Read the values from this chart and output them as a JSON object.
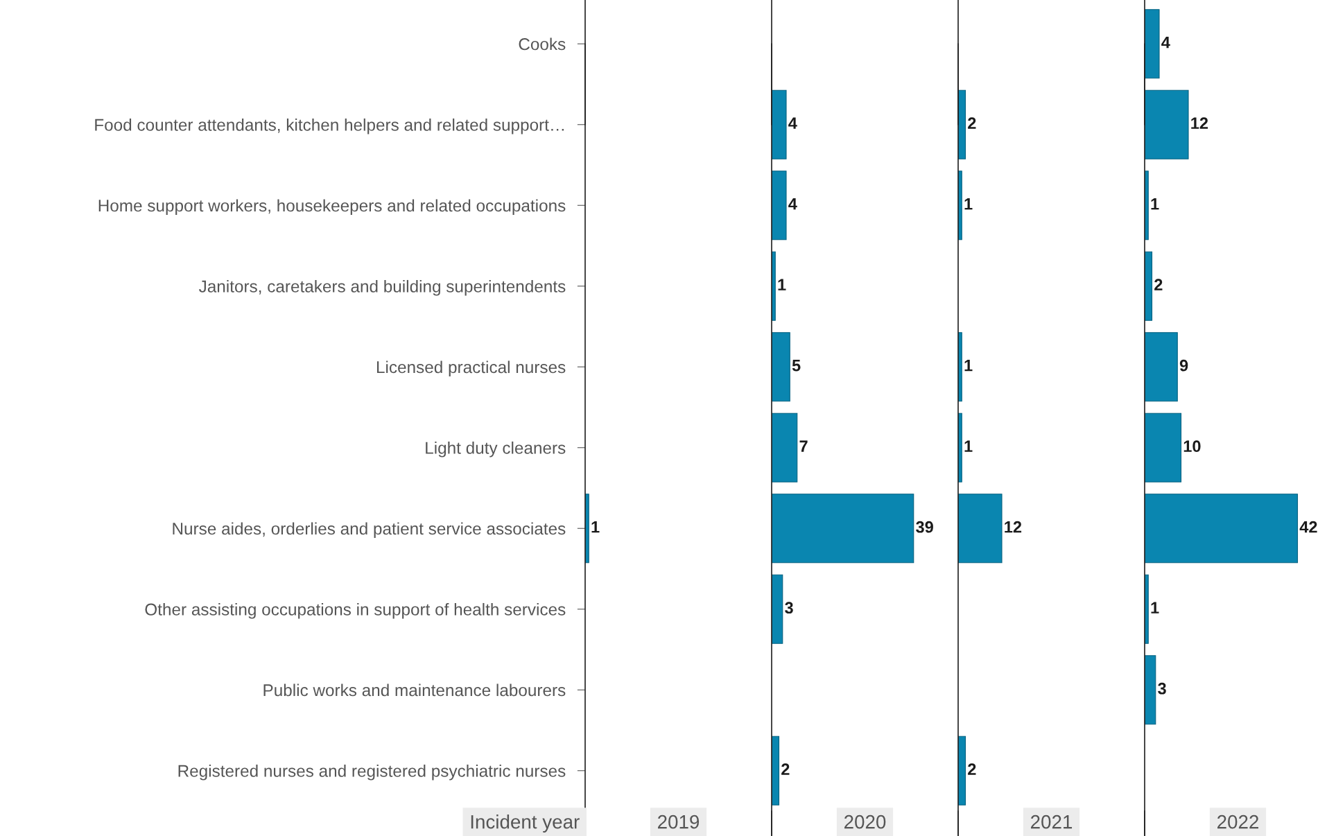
{
  "chart_data": [
    {
      "type": "bar",
      "orientation": "horizontal",
      "xlabel": "2019",
      "annotations": [
        "Incident year"
      ],
      "tick_labels": "y",
      "data_labels": true,
      "color": "#0a86b0",
      "categories": [
        "Cooks",
        "Food counter attendants, kitchen helpers and related support…",
        "Home support workers, housekeepers and related occupations",
        "Janitors, caretakers and building superintendents",
        "Licensed practical nurses",
        "Light duty cleaners",
        "Nurse aides, orderlies and patient service associates",
        "Other assisting occupations in support of health services",
        "Public works and maintenance labourers",
        "Registered nurses and registered psychiatric nurses"
      ],
      "values": [
        null,
        null,
        null,
        null,
        null,
        null,
        1,
        null,
        null,
        null
      ]
    },
    {
      "type": "bar",
      "orientation": "horizontal",
      "xlabel": "2020",
      "tick_labels": false,
      "data_labels": true,
      "color": "#0a86b0",
      "values": [
        null,
        4,
        4,
        1,
        5,
        7,
        39,
        3,
        null,
        2
      ]
    },
    {
      "type": "bar",
      "orientation": "horizontal",
      "xlabel": "2021",
      "tick_labels": false,
      "data_labels": true,
      "color": "#0a86b0",
      "values": [
        null,
        2,
        1,
        null,
        1,
        1,
        12,
        null,
        null,
        2
      ]
    },
    {
      "type": "bar",
      "orientation": "horizontal",
      "xlabel": "2022",
      "tick_labels": false,
      "data_labels": true,
      "color": "#0a86b0",
      "values": [
        4,
        12,
        1,
        2,
        9,
        10,
        42,
        1,
        3,
        null
      ]
    }
  ]
}
